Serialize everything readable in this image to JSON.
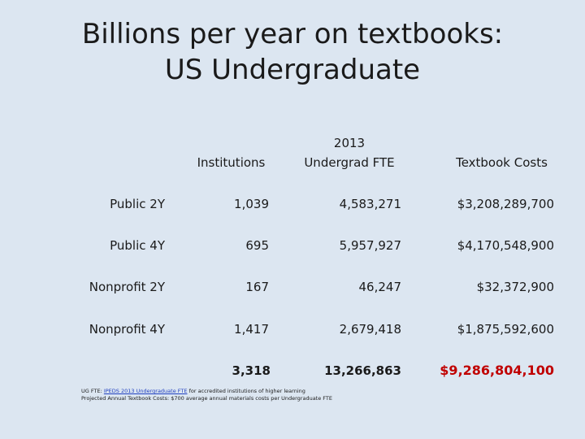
{
  "title": {
    "line1": "Billions per year on textbooks:",
    "line2": "US Undergraduate"
  },
  "headers": {
    "institutions": "Institutions",
    "fte_line1": "2013",
    "fte_line2": "Undergrad FTE",
    "costs": "Textbook Costs"
  },
  "rows": [
    {
      "label": "Public 2Y",
      "institutions": "1,039",
      "fte": "4,583,271",
      "costs": "$3,208,289,700"
    },
    {
      "label": "Public 4Y",
      "institutions": "695",
      "fte": "5,957,927",
      "costs": "$4,170,548,900"
    },
    {
      "label": "Nonprofit 2Y",
      "institutions": "167",
      "fte": "46,247",
      "costs": "$32,372,900"
    },
    {
      "label": "Nonprofit 4Y",
      "institutions": "1,417",
      "fte": "2,679,418",
      "costs": "$1,875,592,600"
    }
  ],
  "totals": {
    "institutions": "3,318",
    "fte": "13,266,863",
    "costs": "$9,286,804,100"
  },
  "footnote": {
    "line1_prefix": "UG FTE:",
    "line1_link": "IPEDS 2013 Undergraduate FTE",
    "line1_suffix": "for accredited institutions of higher learning",
    "line2": "Projected Annual Textbook Costs: $700 average annual materials costs per Undergraduate FTE"
  },
  "colors": {
    "background": "#dce6f1",
    "grand_total": "#c00000"
  }
}
